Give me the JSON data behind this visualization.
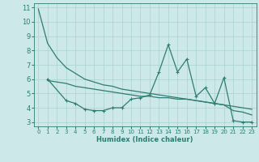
{
  "xlabel": "Humidex (Indice chaleur)",
  "ylabel": "",
  "bg_color": "#cce8e8",
  "grid_color": "#b0d4d4",
  "line_color": "#2e7d72",
  "xlim": [
    -0.5,
    23.5
  ],
  "ylim": [
    2.7,
    11.3
  ],
  "yticks": [
    3,
    4,
    5,
    6,
    7,
    8,
    9,
    10,
    11
  ],
  "xticks": [
    0,
    1,
    2,
    3,
    4,
    5,
    6,
    7,
    8,
    9,
    10,
    11,
    12,
    13,
    14,
    15,
    16,
    17,
    18,
    19,
    20,
    21,
    22,
    23
  ],
  "series": {
    "line1": {
      "x": [
        0,
        1,
        2,
        3,
        4,
        5,
        6,
        7,
        8,
        9,
        10,
        11,
        12,
        13,
        14,
        15,
        16,
        17,
        18,
        19,
        20,
        21,
        22,
        23
      ],
      "y": [
        10.9,
        8.5,
        7.5,
        6.8,
        6.4,
        6.0,
        5.8,
        5.6,
        5.5,
        5.3,
        5.2,
        5.1,
        5.0,
        4.9,
        4.8,
        4.7,
        4.6,
        4.5,
        4.4,
        4.3,
        4.2,
        4.1,
        4.0,
        3.9
      ]
    },
    "line2": {
      "x": [
        1,
        3,
        4,
        5,
        6,
        7,
        8,
        9,
        10,
        11,
        12,
        13,
        14,
        15,
        16,
        17,
        18,
        19,
        20,
        21,
        22,
        23
      ],
      "y": [
        6.0,
        4.5,
        4.3,
        3.9,
        3.8,
        3.8,
        4.0,
        4.0,
        4.6,
        4.7,
        4.9,
        6.5,
        8.4,
        6.5,
        7.4,
        4.8,
        5.4,
        4.3,
        6.1,
        3.1,
        3.0,
        3.0
      ]
    },
    "line3": {
      "x": [
        1,
        2,
        3,
        4,
        5,
        6,
        7,
        8,
        9,
        10,
        11,
        12,
        13,
        14,
        15,
        16,
        17,
        18,
        19,
        20,
        21,
        22,
        23
      ],
      "y": [
        5.9,
        5.8,
        5.7,
        5.5,
        5.4,
        5.3,
        5.2,
        5.1,
        5.0,
        4.9,
        4.8,
        4.8,
        4.7,
        4.7,
        4.6,
        4.6,
        4.5,
        4.4,
        4.3,
        4.2,
        3.8,
        3.7,
        3.5
      ]
    }
  }
}
